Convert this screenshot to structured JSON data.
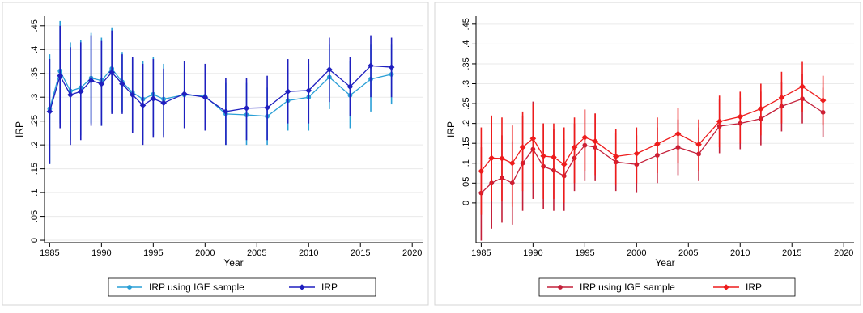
{
  "chart_data": [
    {
      "type": "line",
      "xlabel": "Year",
      "ylabel": "IRP",
      "xlim": [
        1984.5,
        2021
      ],
      "ylim": [
        -0.005,
        0.47
      ],
      "xticks": [
        1985,
        1990,
        1995,
        2000,
        2005,
        2010,
        2015,
        2020
      ],
      "xtick_labels": [
        "1985",
        "1990",
        "1995",
        "2000",
        "2005",
        "2010",
        "2015",
        "2020"
      ],
      "yticks": [
        0,
        0.05,
        0.1,
        0.15,
        0.2,
        0.25,
        0.3,
        0.35,
        0.4,
        0.45
      ],
      "ytick_labels": [
        "0",
        ".05",
        ".1",
        ".15",
        ".2",
        ".25",
        ".3",
        ".35",
        ".4",
        ".45"
      ],
      "ytick_rotation": "vertical",
      "grid": "horizontal",
      "legend_position": "bottom",
      "series": [
        {
          "name": "IRP using IGE sample",
          "color": "#2a9fd6",
          "marker": "circle",
          "x": [
            1985,
            1986,
            1987,
            1988,
            1989,
            1990,
            1991,
            1992,
            1993,
            1994,
            1995,
            1996,
            1998,
            2000,
            2002,
            2004,
            2006,
            2008,
            2010,
            2012,
            2014,
            2016,
            2018
          ],
          "y": [
            0.276,
            0.355,
            0.313,
            0.32,
            0.34,
            0.335,
            0.36,
            0.332,
            0.31,
            0.296,
            0.306,
            0.296,
            0.305,
            0.302,
            0.265,
            0.263,
            0.26,
            0.293,
            0.3,
            0.342,
            0.304,
            0.338,
            0.348
          ],
          "ci_low": [
            0.16,
            0.245,
            0.21,
            0.22,
            0.245,
            0.24,
            0.27,
            0.27,
            0.23,
            0.21,
            0.22,
            0.22,
            0.235,
            0.235,
            0.2,
            0.2,
            0.2,
            0.23,
            0.23,
            0.275,
            0.235,
            0.27,
            0.285
          ],
          "ci_high": [
            0.39,
            0.46,
            0.415,
            0.42,
            0.435,
            0.425,
            0.445,
            0.395,
            0.38,
            0.375,
            0.385,
            0.37,
            0.375,
            0.37,
            0.33,
            0.33,
            0.32,
            0.36,
            0.37,
            0.41,
            0.375,
            0.41,
            0.41
          ]
        },
        {
          "name": "IRP",
          "color": "#1f1fbf",
          "marker": "diamond",
          "x": [
            1985,
            1986,
            1987,
            1988,
            1989,
            1990,
            1991,
            1992,
            1993,
            1994,
            1995,
            1996,
            1998,
            2000,
            2002,
            2004,
            2006,
            2008,
            2010,
            2012,
            2014,
            2016,
            2018
          ],
          "y": [
            0.27,
            0.345,
            0.305,
            0.312,
            0.335,
            0.328,
            0.352,
            0.328,
            0.305,
            0.283,
            0.297,
            0.288,
            0.307,
            0.3,
            0.27,
            0.277,
            0.278,
            0.312,
            0.314,
            0.358,
            0.322,
            0.366,
            0.363
          ],
          "ci_low": [
            0.16,
            0.235,
            0.2,
            0.21,
            0.24,
            0.24,
            0.265,
            0.265,
            0.225,
            0.2,
            0.215,
            0.215,
            0.235,
            0.23,
            0.2,
            0.21,
            0.21,
            0.245,
            0.245,
            0.29,
            0.26,
            0.3,
            0.3
          ],
          "ci_high": [
            0.38,
            0.45,
            0.405,
            0.415,
            0.43,
            0.418,
            0.44,
            0.39,
            0.385,
            0.37,
            0.38,
            0.36,
            0.375,
            0.37,
            0.34,
            0.34,
            0.345,
            0.38,
            0.38,
            0.425,
            0.385,
            0.43,
            0.425
          ]
        }
      ]
    },
    {
      "type": "line",
      "xlabel": "Year",
      "ylabel": "IRP",
      "xlim": [
        1984.5,
        2021
      ],
      "ylim": [
        -0.1,
        0.47
      ],
      "xticks": [
        1985,
        1990,
        1995,
        2000,
        2005,
        2010,
        2015,
        2020
      ],
      "xtick_labels": [
        "1985",
        "1990",
        "1995",
        "2000",
        "2005",
        "2010",
        "2015",
        "2020"
      ],
      "yticks": [
        0,
        0.05,
        0.1,
        0.15,
        0.2,
        0.25,
        0.3,
        0.35,
        0.4,
        0.45
      ],
      "ytick_labels": [
        "0",
        ".05",
        ".1",
        ".15",
        ".2",
        ".25",
        ".3",
        ".35",
        ".4",
        ".45"
      ],
      "ytick_rotation": "vertical",
      "grid": "horizontal",
      "legend_position": "bottom",
      "series": [
        {
          "name": "IRP using IGE sample",
          "color": "#c4203a",
          "marker": "circle",
          "x": [
            1985,
            1986,
            1987,
            1988,
            1989,
            1990,
            1991,
            1992,
            1993,
            1994,
            1995,
            1996,
            1998,
            2000,
            2002,
            2004,
            2006,
            2008,
            2010,
            2012,
            2014,
            2016,
            2018
          ],
          "y": [
            0.025,
            0.05,
            0.063,
            0.05,
            0.1,
            0.135,
            0.092,
            0.082,
            0.068,
            0.113,
            0.145,
            0.14,
            0.103,
            0.097,
            0.12,
            0.14,
            0.123,
            0.193,
            0.2,
            0.212,
            0.243,
            0.262,
            0.228
          ],
          "ci_low": [
            -0.095,
            -0.065,
            -0.05,
            -0.055,
            -0.02,
            0.01,
            -0.015,
            -0.02,
            -0.02,
            0.03,
            0.055,
            0.055,
            0.03,
            0.025,
            0.05,
            0.07,
            0.055,
            0.125,
            0.135,
            0.145,
            0.18,
            0.2,
            0.165
          ],
          "ci_high": [
            0.14,
            0.165,
            0.17,
            0.155,
            0.22,
            0.255,
            0.2,
            0.185,
            0.16,
            0.2,
            0.235,
            0.225,
            0.175,
            0.17,
            0.19,
            0.21,
            0.19,
            0.26,
            0.265,
            0.28,
            0.305,
            0.325,
            0.29
          ]
        },
        {
          "name": "IRP",
          "color": "#ee1c1c",
          "marker": "diamond",
          "x": [
            1985,
            1986,
            1987,
            1988,
            1989,
            1990,
            1991,
            1992,
            1993,
            1994,
            1995,
            1996,
            1998,
            2000,
            2002,
            2004,
            2006,
            2008,
            2010,
            2012,
            2014,
            2016,
            2018
          ],
          "y": [
            0.08,
            0.113,
            0.112,
            0.1,
            0.14,
            0.162,
            0.118,
            0.115,
            0.097,
            0.14,
            0.165,
            0.155,
            0.117,
            0.124,
            0.148,
            0.174,
            0.147,
            0.205,
            0.217,
            0.237,
            0.265,
            0.293,
            0.258
          ],
          "ci_low": [
            -0.03,
            0.005,
            0.005,
            -0.01,
            0.03,
            0.05,
            0.01,
            0.01,
            0.0,
            0.05,
            0.08,
            0.07,
            0.045,
            0.05,
            0.075,
            0.1,
            0.08,
            0.14,
            0.15,
            0.17,
            0.2,
            0.23,
            0.195
          ],
          "ci_high": [
            0.19,
            0.22,
            0.215,
            0.195,
            0.23,
            0.25,
            0.2,
            0.2,
            0.19,
            0.215,
            0.235,
            0.225,
            0.185,
            0.19,
            0.215,
            0.24,
            0.21,
            0.27,
            0.28,
            0.3,
            0.33,
            0.355,
            0.32
          ]
        }
      ]
    }
  ]
}
